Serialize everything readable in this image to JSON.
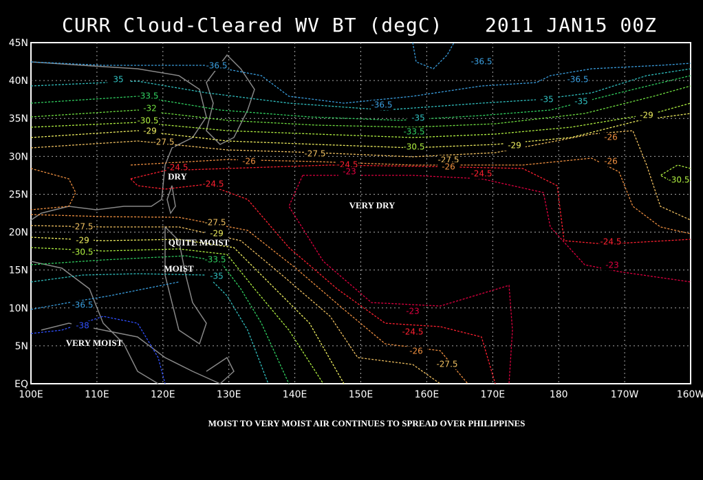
{
  "map": {
    "title_left": "CURR Cloud-Cleared WV BT (degC)",
    "title_right": "2011 JAN15 00Z",
    "lat_labels": [
      "45N",
      "40N",
      "35N",
      "30N",
      "25N",
      "20N",
      "15N",
      "10N",
      "5N",
      "EQ"
    ],
    "lon_labels": [
      "100E",
      "110E",
      "120E",
      "130E",
      "140E",
      "150E",
      "160E",
      "170E",
      "180",
      "170W",
      "160W"
    ],
    "contour_labels": [
      "-36.5",
      "-36.5",
      "-36.5",
      "-36.5",
      "35",
      "-35",
      "-35",
      "-33.5",
      "-32",
      "-30.5",
      "-29",
      "-27.5",
      "-26",
      "-24.5",
      "-24.5",
      "-24.5",
      "-24.5",
      "-23",
      "-35",
      "-33.5",
      "-30.5",
      "-27.5",
      "-29",
      "-27.5",
      "-26",
      "-26",
      "-29",
      "-30.5",
      "-26",
      "-27.5",
      "-29",
      "-30.5",
      "-33.5",
      "-35",
      "-36.5",
      "-38",
      "-24.5",
      "-23",
      "-23",
      "-24.5",
      "-26",
      "-27.5",
      "-29",
      "-27.5"
    ],
    "annotations": [
      "DRY",
      "VERY DRY",
      "QUITE MOIST",
      "MOIST",
      "VERY MOIST"
    ],
    "caption": "MOIST TO VERY MOIST AIR CONTINUES TO SPREAD OVER PHILIPPINES"
  }
}
